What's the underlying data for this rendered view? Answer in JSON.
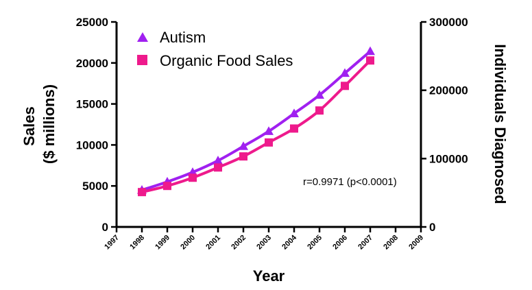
{
  "chart_data": {
    "type": "line",
    "title": "",
    "xlabel": "Year",
    "ylabel_left": [
      "Sales",
      "($ millions)"
    ],
    "ylabel_right": "Individuals Diagnosed",
    "x_ticks": [
      "1997",
      "1998",
      "1999",
      "2000",
      "2001",
      "2002",
      "2003",
      "2004",
      "2005",
      "2006",
      "2007",
      "2008",
      "2009"
    ],
    "xlim": [
      1997,
      2009
    ],
    "ylim_left": [
      0,
      25000
    ],
    "yticks_left": [
      "0",
      "5000",
      "10000",
      "15000",
      "20000",
      "25000"
    ],
    "ylim_right": [
      0,
      300000
    ],
    "yticks_right": [
      "0",
      "100000",
      "200000",
      "300000"
    ],
    "legend_position": "top-left",
    "series": [
      {
        "name": "Autism",
        "axis": "right",
        "marker": "triangle",
        "color": "#a020f0",
        "x": [
          1998,
          1999,
          2000,
          2001,
          2002,
          2003,
          2004,
          2005,
          2006,
          2007
        ],
        "values": [
          54000,
          66000,
          80000,
          97000,
          118000,
          140000,
          166000,
          193000,
          225000,
          257000
        ]
      },
      {
        "name": "Organic Food Sales",
        "axis": "left",
        "marker": "square",
        "color": "#ee1a8c",
        "x": [
          1998,
          1999,
          2000,
          2001,
          2002,
          2003,
          2004,
          2005,
          2006,
          2007
        ],
        "values": [
          4250,
          5000,
          6000,
          7250,
          8600,
          10300,
          12000,
          14200,
          17200,
          20300
        ]
      }
    ],
    "annotation": "r=0.9971 (p<0.0001)"
  }
}
